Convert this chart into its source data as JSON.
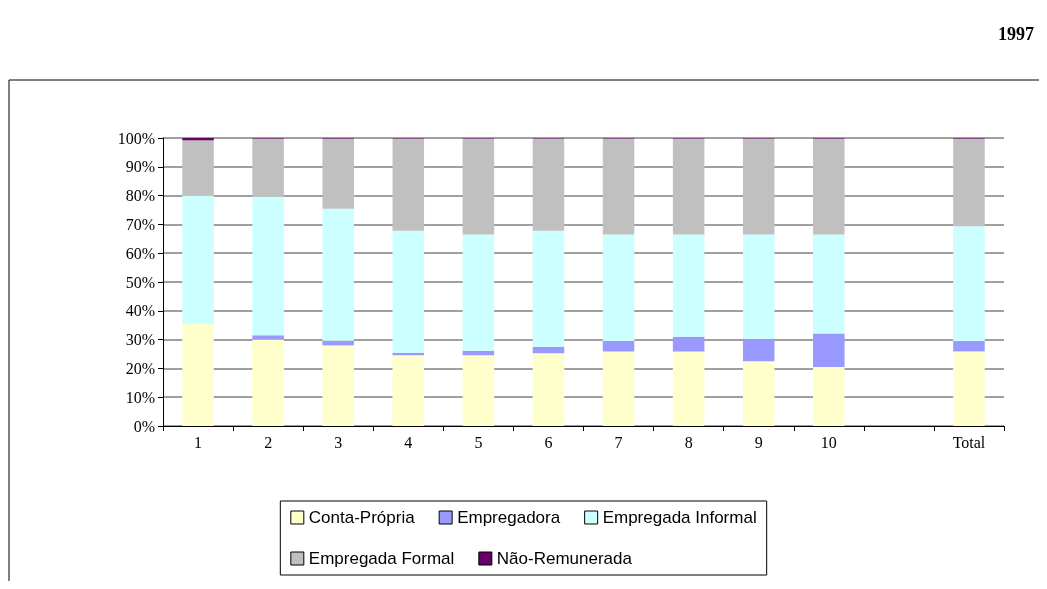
{
  "chart_data": {
    "type": "bar",
    "stacked": true,
    "title": "1997",
    "categories": [
      "1",
      "2",
      "3",
      "4",
      "5",
      "6",
      "7",
      "8",
      "9",
      "10",
      null,
      "Total"
    ],
    "series": [
      {
        "name": "Conta-Própria",
        "color": "#ffffcc",
        "values": [
          35.5,
          30,
          28,
          24.6,
          24.6,
          25.3,
          25.9,
          25.9,
          22.5,
          20.5,
          null,
          25.9
        ]
      },
      {
        "name": "Empregadora",
        "color": "#9999ff",
        "values": [
          0,
          1.5,
          1.6,
          0.8,
          1.5,
          2.2,
          3.6,
          5.1,
          7.8,
          11.6,
          null,
          3.6
        ]
      },
      {
        "name": "Empregada Informal",
        "color": "#ccffff",
        "values": [
          44.5,
          48,
          45.8,
          42.4,
          40.4,
          40.3,
          37,
          35.5,
          36.2,
          34.4,
          null,
          39.9
        ]
      },
      {
        "name": "Empregada Formal",
        "color": "#c0c0c0",
        "values": [
          19.2,
          20.3,
          24.4,
          32,
          33.3,
          32,
          33.3,
          33.3,
          33.3,
          33.3,
          null,
          30.4
        ]
      },
      {
        "name": "Não-Remunerada",
        "color": "#660066",
        "values": [
          0.8,
          0.2,
          0.2,
          0.2,
          0.2,
          0.2,
          0.2,
          0.2,
          0.2,
          0.2,
          null,
          0.2
        ]
      }
    ],
    "ylim": [
      0,
      100
    ],
    "yticks": [
      {
        "value": 0,
        "label": "0%"
      },
      {
        "value": 10,
        "label": "10%"
      },
      {
        "value": 20,
        "label": "20%"
      },
      {
        "value": 30,
        "label": "30%"
      },
      {
        "value": 40,
        "label": "40%"
      },
      {
        "value": 50,
        "label": "50%"
      },
      {
        "value": 60,
        "label": "60%"
      },
      {
        "value": 70,
        "label": "70%"
      },
      {
        "value": 80,
        "label": "80%"
      },
      {
        "value": 90,
        "label": "90%"
      },
      {
        "value": 100,
        "label": "100%"
      }
    ],
    "grid": "y",
    "legend": "bottom"
  }
}
